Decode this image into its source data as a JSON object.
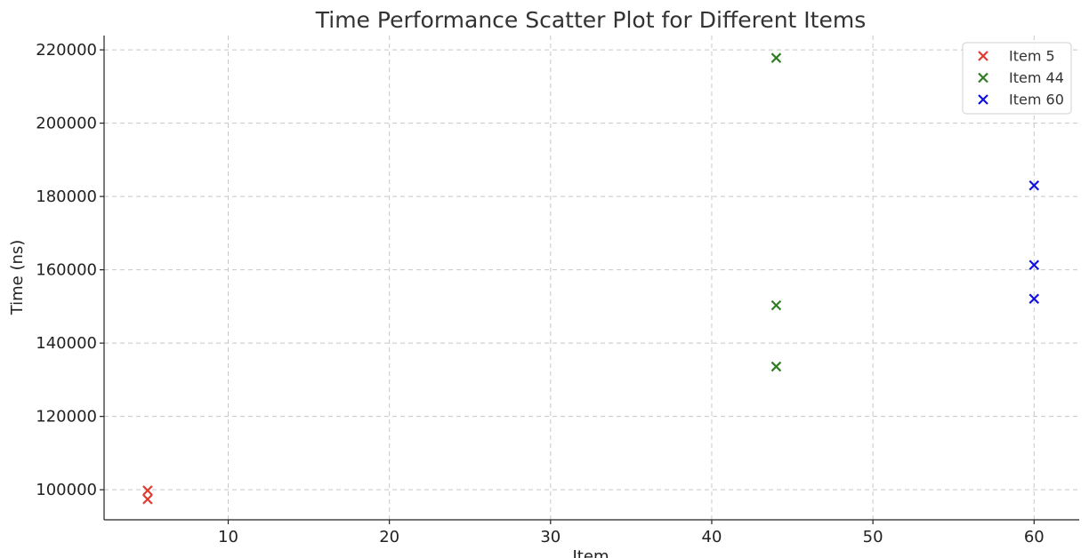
{
  "chart_data": {
    "type": "scatter",
    "title": "Time Performance Scatter Plot for Different Items",
    "xlabel": "Item",
    "ylabel": "Time (ns)",
    "xlim": [
      2.3,
      62.8
    ],
    "ylim": [
      91800,
      223900
    ],
    "xticks": [
      10,
      20,
      30,
      40,
      50,
      60
    ],
    "yticks": [
      100000,
      120000,
      140000,
      160000,
      180000,
      200000,
      220000
    ],
    "grid": true,
    "legend_position": "top-right",
    "marker": "x",
    "series": [
      {
        "name": "Item 5",
        "color": "#e03a2f",
        "points": [
          {
            "x": 5,
            "y": 99800
          },
          {
            "x": 5,
            "y": 97400
          }
        ]
      },
      {
        "name": "Item 44",
        "color": "#2f7d22",
        "points": [
          {
            "x": 44,
            "y": 217800
          },
          {
            "x": 44,
            "y": 150300
          },
          {
            "x": 44,
            "y": 133600
          }
        ]
      },
      {
        "name": "Item 60",
        "color": "#1010e0",
        "points": [
          {
            "x": 60,
            "y": 183000
          },
          {
            "x": 60,
            "y": 161300
          },
          {
            "x": 60,
            "y": 152100
          }
        ]
      }
    ]
  }
}
